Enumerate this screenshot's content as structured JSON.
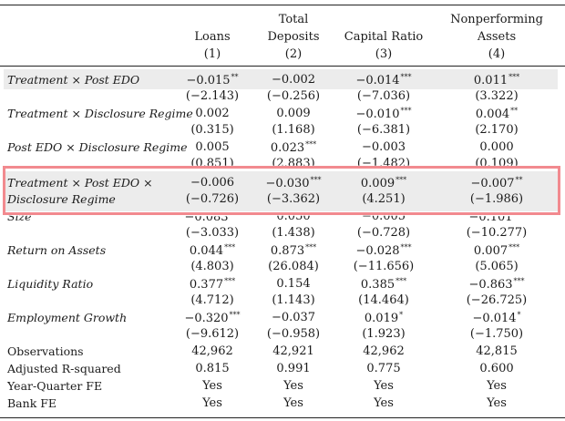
{
  "columns": [
    {
      "title_lines": [
        "",
        "Loans"
      ],
      "num": "(1)"
    },
    {
      "title_lines": [
        "Total",
        "Deposits"
      ],
      "num": "(2)"
    },
    {
      "title_lines": [
        "",
        "Capital Ratio"
      ],
      "num": "(3)"
    },
    {
      "title_lines": [
        "Nonperforming",
        "Assets"
      ],
      "num": "(4)"
    }
  ],
  "rows": [
    {
      "label": "Treatment × Post EDO",
      "coef": [
        "−0.015",
        "−0.002",
        "−0.014",
        "0.011"
      ],
      "stars": [
        "**",
        "",
        "***",
        "***"
      ],
      "t": [
        "(−2.143)",
        "(−0.256)",
        "(−7.036)",
        "(3.322)"
      ]
    },
    {
      "label": "Treatment × Disclosure Regime",
      "coef": [
        "0.002",
        "0.009",
        "−0.010",
        "0.004"
      ],
      "stars": [
        "",
        "",
        "***",
        "**"
      ],
      "t": [
        "(0.315)",
        "(1.168)",
        "(−6.381)",
        "(2.170)"
      ]
    },
    {
      "label": "Post EDO × Disclosure Regime",
      "coef": [
        "0.005",
        "0.023",
        "−0.003",
        "0.000"
      ],
      "stars": [
        "",
        "***",
        "",
        ""
      ],
      "t": [
        "(0.851)",
        "(2.883)",
        "(−1.482)",
        "(0.109)"
      ]
    },
    {
      "label_lines": [
        "Treatment × Post EDO ×",
        "Disclosure Regime"
      ],
      "coef": [
        "−0.006",
        "−0.030",
        "0.009",
        "−0.007"
      ],
      "stars": [
        "",
        "***",
        "***",
        "**"
      ],
      "t": [
        "(−0.726)",
        "(−3.362)",
        "(4.251)",
        "(−1.986)"
      ]
    },
    {
      "label": "Size",
      "coef": [
        "−0.083",
        "0.050",
        "−0.005",
        "−0.101"
      ],
      "stars": [
        "***",
        "",
        "",
        "***"
      ],
      "t": [
        "(−3.033)",
        "(1.438)",
        "(−0.728)",
        "(−10.277)"
      ]
    },
    {
      "label": "Return on Assets",
      "coef": [
        "0.044",
        "0.873",
        "−0.028",
        "0.007"
      ],
      "stars": [
        "***",
        "***",
        "***",
        "***"
      ],
      "t": [
        "(4.803)",
        "(26.084)",
        "(−11.656)",
        "(5.065)"
      ]
    },
    {
      "label": "Liquidity Ratio",
      "coef": [
        "0.377",
        "0.154",
        "0.385",
        "−0.863"
      ],
      "stars": [
        "***",
        "",
        "***",
        "***"
      ],
      "t": [
        "(4.712)",
        "(1.143)",
        "(14.464)",
        "(−26.725)"
      ]
    },
    {
      "label": "Employment Growth",
      "coef": [
        "−0.320",
        "−0.037",
        "0.019",
        "−0.014"
      ],
      "stars": [
        "***",
        "",
        "*",
        "*"
      ],
      "t": [
        "(−9.612)",
        "(−0.958)",
        "(1.923)",
        "(−1.750)"
      ]
    }
  ],
  "footer": [
    {
      "label": "Observations",
      "values": [
        "42,962",
        "42,921",
        "42,962",
        "42,815"
      ]
    },
    {
      "label": "Adjusted R-squared",
      "values": [
        "0.815",
        "0.991",
        "0.775",
        "0.600"
      ]
    },
    {
      "label": "Year-Quarter FE",
      "values": [
        "Yes",
        "Yes",
        "Yes",
        "Yes"
      ]
    },
    {
      "label": "Bank FE",
      "values": [
        "Yes",
        "Yes",
        "Yes",
        "Yes"
      ]
    }
  ]
}
